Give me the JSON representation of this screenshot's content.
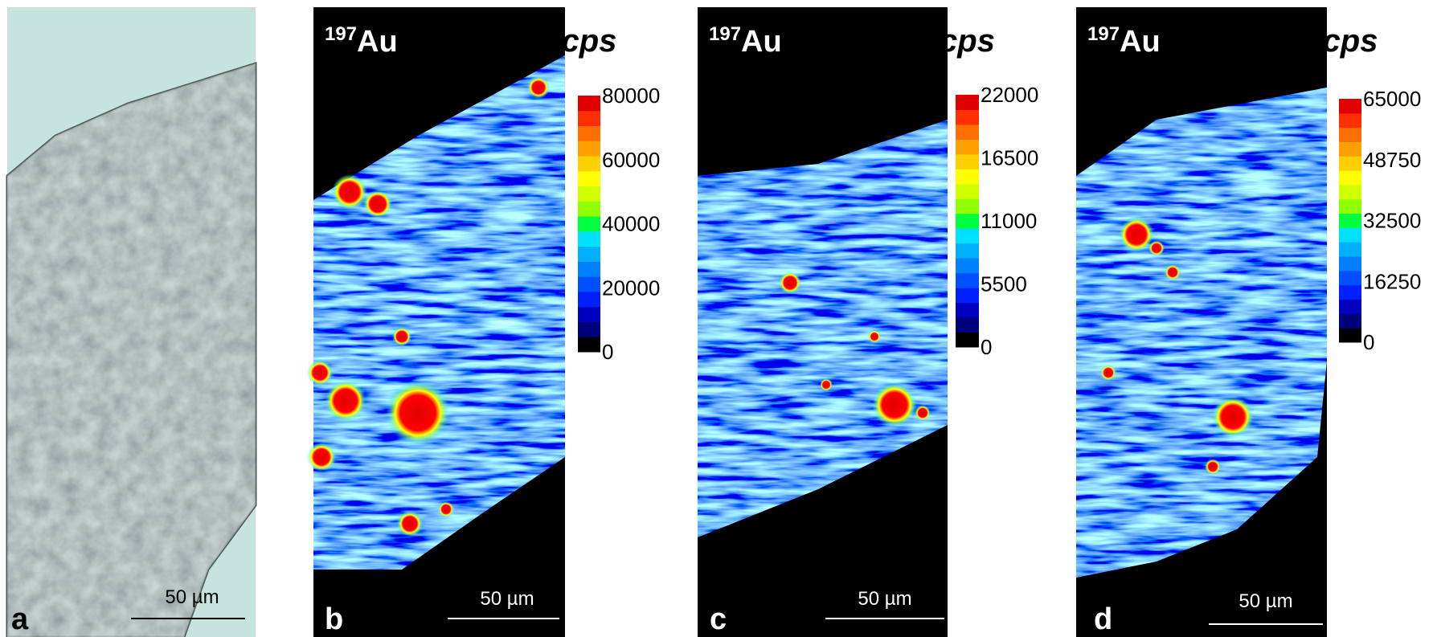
{
  "panels": [
    {
      "label": "a",
      "scale_bar": "50 µm"
    },
    {
      "label": "b",
      "isotope_mass": "197",
      "element": "Au",
      "unit": "cps",
      "colorbar_ticks": [
        0,
        20000,
        40000,
        60000,
        80000
      ],
      "scale_bar": "50 µm"
    },
    {
      "label": "c",
      "isotope_mass": "197",
      "element": "Au",
      "unit": "cps",
      "colorbar_ticks": [
        0,
        5500,
        11000,
        16500,
        22000
      ],
      "scale_bar": "50 µm"
    },
    {
      "label": "d",
      "isotope_mass": "197",
      "element": "Au",
      "unit": "cps",
      "colorbar_ticks": [
        0,
        16250,
        32500,
        48750,
        65000
      ],
      "scale_bar": "50 µm"
    }
  ]
}
